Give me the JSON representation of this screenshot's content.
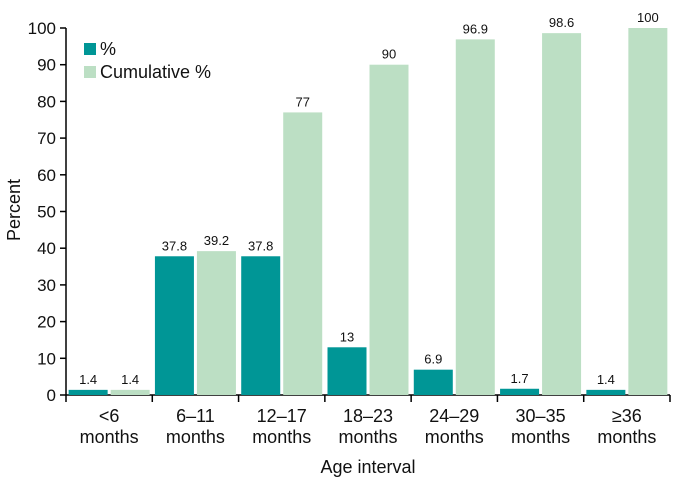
{
  "chart_data": {
    "type": "bar",
    "categories": [
      [
        "<6",
        "months"
      ],
      [
        "6–11",
        "months"
      ],
      [
        "12–17",
        "months"
      ],
      [
        "18–23",
        "months"
      ],
      [
        "24–29",
        "months"
      ],
      [
        "30–35",
        "months"
      ],
      [
        "≥36",
        "months"
      ]
    ],
    "series": [
      {
        "name": "%",
        "color": "#009696",
        "values": [
          1.4,
          37.8,
          37.8,
          13,
          6.9,
          1.7,
          1.4
        ],
        "labels": [
          "1.4",
          "37.8",
          "37.8",
          "13",
          "6.9",
          "1.7",
          "1.4"
        ]
      },
      {
        "name": "Cumulative %",
        "color": "#bcdfc4",
        "values": [
          1.4,
          39.2,
          77,
          90,
          96.9,
          98.6,
          100
        ],
        "labels": [
          "1.4",
          "39.2",
          "77",
          "90",
          "96.9",
          "98.6",
          "100"
        ]
      }
    ],
    "xlabel": "Age interval",
    "ylabel": "Percent",
    "ylim": [
      0,
      100
    ],
    "yticks": [
      "0",
      "10",
      "20",
      "30",
      "40",
      "50",
      "60",
      "70",
      "80",
      "90",
      "100"
    ],
    "grid": false,
    "legend_position": "top-left"
  }
}
